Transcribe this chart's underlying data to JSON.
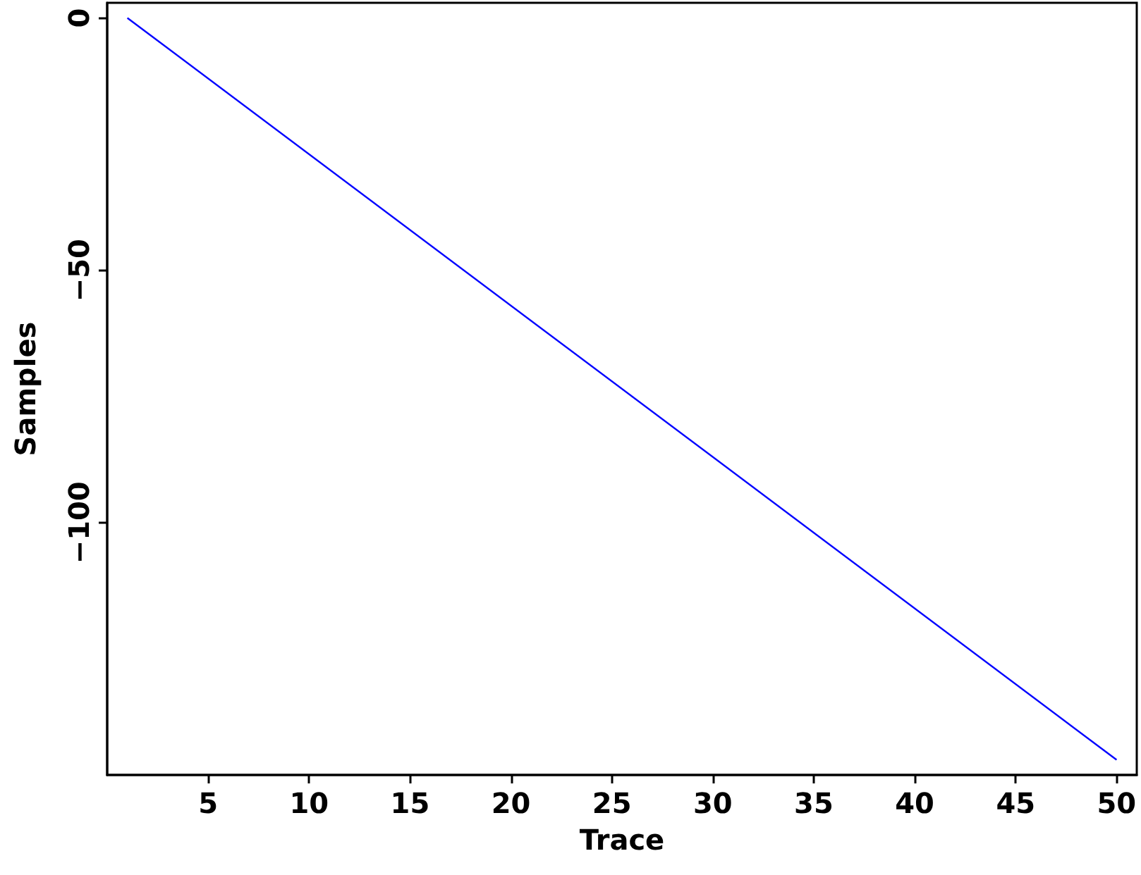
{
  "chart_data": {
    "type": "line",
    "xlabel": "Trace",
    "ylabel": "Samples",
    "x": [
      1,
      50
    ],
    "series": [
      {
        "color": "#0000ff",
        "values": [
          0,
          -147
        ]
      }
    ],
    "xlim": [
      0,
      51
    ],
    "xticks": [
      5,
      10,
      15,
      20,
      25,
      30,
      35,
      40,
      45,
      50
    ],
    "ylim": [
      -150,
      3
    ],
    "yticks": [
      0,
      -50,
      -100
    ],
    "grid": false,
    "marker": "none",
    "line_style": "solid"
  }
}
